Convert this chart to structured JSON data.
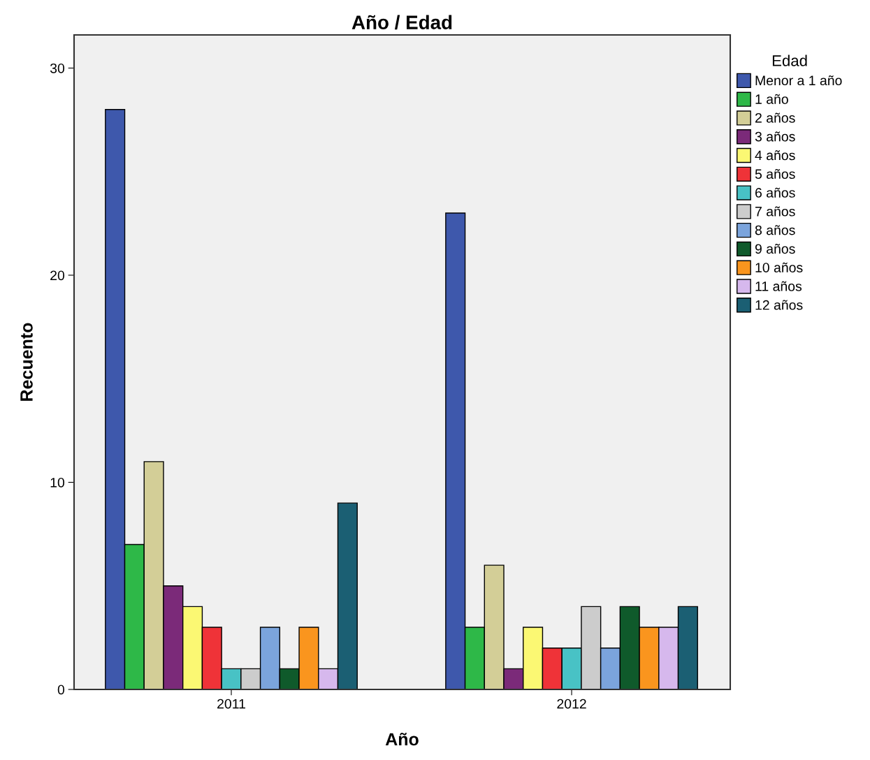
{
  "chart_data": {
    "type": "bar",
    "title": "Año / Edad",
    "xlabel": "Año",
    "ylabel": "Recuento",
    "legend_title": "Edad",
    "categories": [
      "2011",
      "2012"
    ],
    "series": [
      {
        "name": "Menor a 1 año",
        "color": "#3e58ac",
        "values": [
          28,
          23
        ]
      },
      {
        "name": "1 año",
        "color": "#2eb848",
        "values": [
          7,
          3
        ]
      },
      {
        "name": "2 años",
        "color": "#d3ce97",
        "values": [
          11,
          6
        ]
      },
      {
        "name": "3 años",
        "color": "#7b2a79",
        "values": [
          5,
          1
        ]
      },
      {
        "name": "4 años",
        "color": "#fbf873",
        "values": [
          4,
          3
        ]
      },
      {
        "name": "5 años",
        "color": "#ef3338",
        "values": [
          3,
          2
        ]
      },
      {
        "name": "6 años",
        "color": "#48c2c5",
        "values": [
          1,
          2
        ]
      },
      {
        "name": "7 años",
        "color": "#cccccc",
        "values": [
          1,
          4
        ]
      },
      {
        "name": "8 años",
        "color": "#7ba4dc",
        "values": [
          3,
          2
        ]
      },
      {
        "name": "9 años",
        "color": "#0f5a2b",
        "values": [
          1,
          4
        ]
      },
      {
        "name": "10 años",
        "color": "#fa951e",
        "values": [
          3,
          3
        ]
      },
      {
        "name": "11 años",
        "color": "#d6b8ed",
        "values": [
          1,
          3
        ]
      },
      {
        "name": "12 años",
        "color": "#1b5f73",
        "values": [
          9,
          4
        ]
      }
    ],
    "ylim": [
      0,
      31.6
    ],
    "yticks": [
      0,
      10,
      20,
      30
    ],
    "grid": false,
    "legend": "top right"
  }
}
